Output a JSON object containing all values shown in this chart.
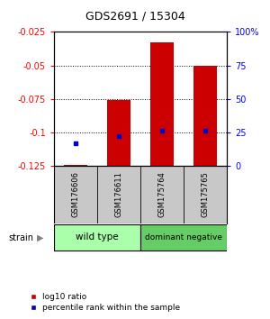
{
  "title": "GDS2691 / 15304",
  "samples": [
    "GSM176606",
    "GSM176611",
    "GSM175764",
    "GSM175765"
  ],
  "log10_ratio": [
    -0.1245,
    -0.076,
    -0.033,
    -0.05
  ],
  "baseline": -0.1255,
  "percentile_rank": [
    17.0,
    22.0,
    26.0,
    26.5
  ],
  "ylim_left": [
    -0.125,
    -0.025
  ],
  "ylim_right": [
    0,
    100
  ],
  "yticks_left": [
    -0.125,
    -0.1,
    -0.075,
    -0.05,
    -0.025
  ],
  "yticks_right": [
    0,
    25,
    50,
    75,
    100
  ],
  "ytick_labels_left": [
    "-0.125",
    "-0.1",
    "-0.075",
    "-0.05",
    "-0.025"
  ],
  "ytick_labels_right": [
    "0",
    "25",
    "50",
    "75",
    "100%"
  ],
  "bar_color": "#CC0000",
  "dot_color": "#0000CC",
  "background_color": "#FFFFFF",
  "wildtype_color": "#AAFFAA",
  "dominant_color": "#66CC66",
  "group1_label": "wild type",
  "group2_label": "dominant negative",
  "legend_bar_label": "log10 ratio",
  "legend_dot_label": "percentile rank within the sample",
  "bar_width": 0.55
}
